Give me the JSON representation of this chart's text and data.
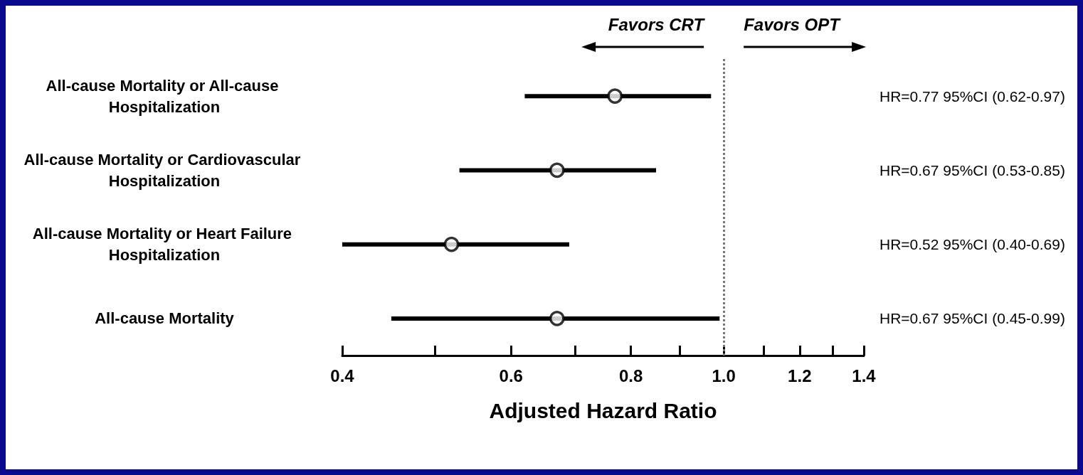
{
  "chart_data": {
    "type": "scatter",
    "orientation": "horizontal",
    "xlabel": "Adjusted Hazard Ratio",
    "categories": [
      "All-cause Mortality or All-cause Hospitalization",
      "All-cause Mortality or Cardiovascular Hospitalization",
      "All-cause Mortality or Heart Failure Hospitalization",
      "All-cause Mortality"
    ],
    "values": [
      0.77,
      0.67,
      0.52,
      0.67
    ],
    "errors": [
      [
        0.62,
        0.97
      ],
      [
        0.53,
        0.85
      ],
      [
        0.4,
        0.69
      ],
      [
        0.45,
        0.99
      ]
    ],
    "value_labels": [
      "HR=0.77 95%CI (0.62-0.97)",
      "HR=0.67 95%CI (0.53-0.85)",
      "HR=0.52 95%CI (0.40-0.69)",
      "HR=0.67 95%CI (0.45-0.99)"
    ],
    "color": "#000000",
    "marker": "circle",
    "log": "x",
    "xlim": [
      0.4,
      1.4
    ],
    "xticks": [
      0.4,
      {
        "value": 0.5,
        "label": null
      },
      0.6,
      {
        "value": 0.7,
        "label": null
      },
      0.8,
      {
        "value": 0.9,
        "label": null
      },
      {
        "value": 1,
        "label": "1.0"
      },
      {
        "value": 1.1,
        "label": null
      },
      1.2,
      {
        "value": 1.3,
        "label": null
      },
      1.4
    ],
    "ref_lines": [
      {
        "axis": "x",
        "value": 1,
        "line_style": "dotted",
        "color": "#777777"
      }
    ],
    "annotations": [
      "Favors CRT",
      "Favors OPT"
    ]
  }
}
